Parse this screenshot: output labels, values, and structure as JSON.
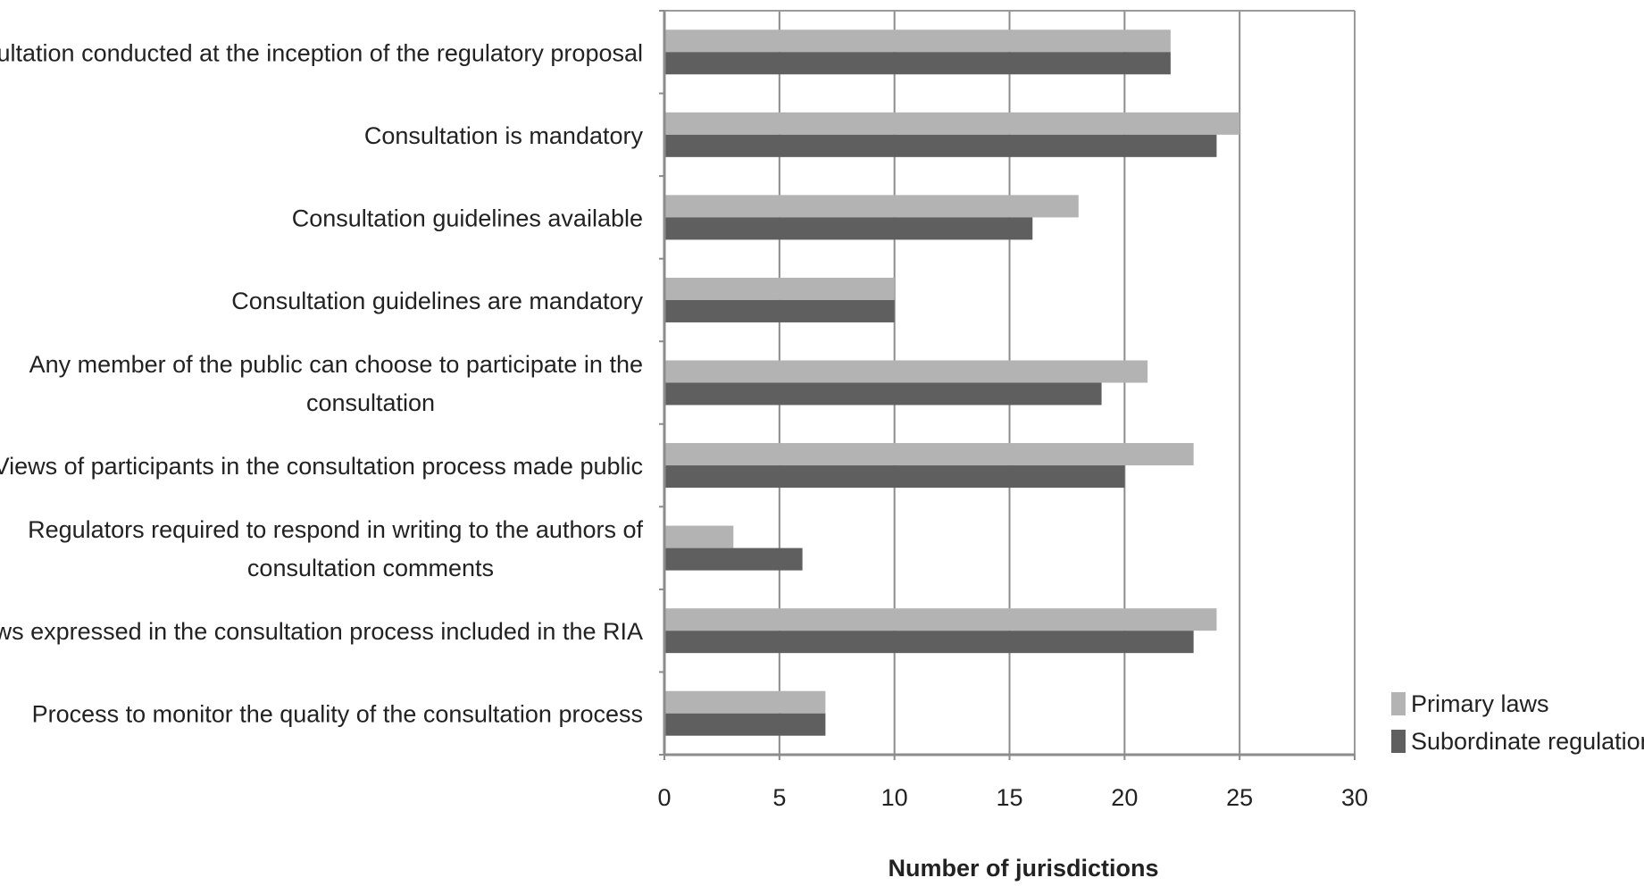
{
  "chart_data": {
    "type": "bar",
    "orientation": "horizontal",
    "categories": [
      [
        "Consultation conducted at the inception of the regulatory proposal"
      ],
      [
        "Consultation is mandatory"
      ],
      [
        "Consultation guidelines available"
      ],
      [
        "Consultation guidelines are mandatory"
      ],
      [
        "Any member of the public can choose to participate in the",
        "consultation"
      ],
      [
        "Views of participants in the consultation process made public"
      ],
      [
        "Regulators required to respond in writing to the authors of",
        "consultation comments"
      ],
      [
        "Views expressed in the consultation process included in the RIA"
      ],
      [
        "Process to monitor the quality of the consultation process"
      ]
    ],
    "series": [
      {
        "name": "Primary laws",
        "color": "#b3b3b3",
        "values": [
          22,
          25,
          18,
          10,
          21,
          23,
          3,
          24,
          7
        ]
      },
      {
        "name": "Subordinate regulations",
        "color": "#5f5f5f",
        "values": [
          22,
          24,
          16,
          10,
          19,
          20,
          6,
          23,
          7
        ]
      }
    ],
    "xlabel": "Number of jurisdictions",
    "xlim": [
      0,
      30
    ],
    "xticks": [
      0,
      5,
      10,
      15,
      20,
      25,
      30
    ],
    "grid": "vertical",
    "legend_position": "right-bottom"
  },
  "colors": {
    "gridline": "#8c8c8c",
    "axis": "#8c8c8c",
    "frame": "#9a9a9a"
  }
}
